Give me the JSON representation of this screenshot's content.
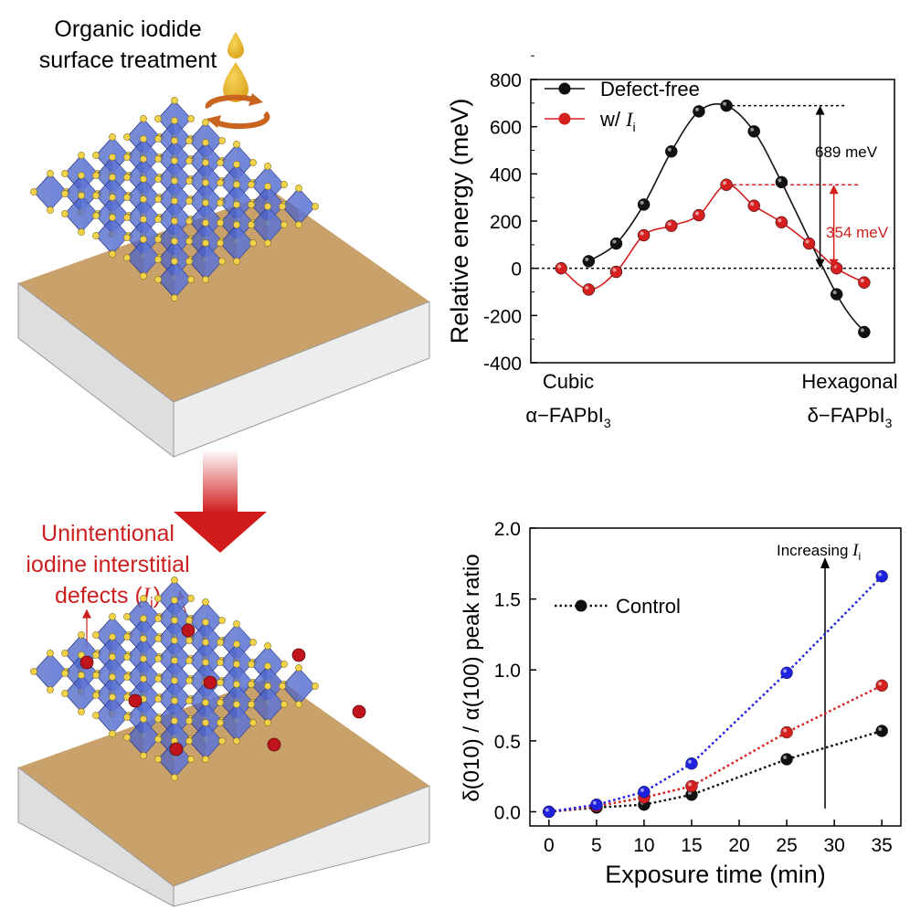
{
  "colors": {
    "black_series": "#111111",
    "red_series": "#d62020",
    "blue_series": "#2020e0",
    "annotation_red": "#cc1f1f",
    "substrate_top": "#c9a16b",
    "substrate_side": "#dcdcdc",
    "octahedron": "#4a63c8",
    "iodide_atom": "#f2d24a",
    "defect_atom": "#c0141c"
  },
  "illustration": {
    "top_caption_line1": "Organic iodide",
    "top_caption_line2": "surface treatment",
    "defect_caption_line1": "Unintentional",
    "defect_caption_line2": "iodine interstitial",
    "defect_caption_line3_prefix": "defects (",
    "defect_caption_line3_symbol": "I",
    "defect_caption_line3_sub": "i",
    "defect_caption_line3_suffix": ")"
  },
  "chart_data": [
    {
      "type": "line",
      "ylabel": "Relative energy (meV)",
      "ylim": [
        -400,
        800
      ],
      "yticks": [
        -400,
        -200,
        0,
        200,
        400,
        600,
        800
      ],
      "x_labels": {
        "left_line1": "Cubic",
        "left_line2_prefix": "α−FAPbI",
        "left_line2_sub": "3",
        "right_line1": "Hexagonal",
        "right_line2_prefix": "δ−FAPbI",
        "right_line2_sub": "3"
      },
      "legend": {
        "position": "top-left"
      },
      "series": [
        {
          "name": "Defect-free",
          "color": "#111111",
          "points": [
            [
              0.5,
              30
            ],
            [
              1.5,
              105
            ],
            [
              2.5,
              270
            ],
            [
              3.5,
              495
            ],
            [
              4.5,
              665
            ],
            [
              5.5,
              689
            ],
            [
              6.5,
              580
            ],
            [
              7.5,
              365
            ],
            [
              9.5,
              -110
            ],
            [
              10.5,
              -270
            ]
          ]
        },
        {
          "name_prefix": "w/ ",
          "name_symbol": "I",
          "name_sub": "i",
          "color": "#d62020",
          "points": [
            [
              -0.5,
              0
            ],
            [
              0.5,
              -90
            ],
            [
              1.5,
              -15
            ],
            [
              2.5,
              140
            ],
            [
              3.5,
              180
            ],
            [
              4.5,
              225
            ],
            [
              5.5,
              354
            ],
            [
              6.5,
              265
            ],
            [
              7.5,
              195
            ],
            [
              8.5,
              105
            ],
            [
              9.5,
              0
            ],
            [
              10.5,
              -60
            ]
          ]
        }
      ],
      "annotations": {
        "barrier_defect_free": "689 meV",
        "barrier_with_Ii": "354 meV"
      }
    },
    {
      "type": "line",
      "xlabel": "Exposure time (min)",
      "ylabel": "δ(010) / α(100) peak ratio",
      "xlim": [
        -2,
        37
      ],
      "ylim": [
        -0.1,
        2.0
      ],
      "xticks": [
        0,
        5,
        10,
        15,
        20,
        25,
        30,
        35
      ],
      "yticks": [
        0.0,
        0.5,
        1.0,
        1.5,
        2.0
      ],
      "legend": {
        "position": "top-left",
        "entries": [
          "Control"
        ]
      },
      "series": [
        {
          "name": "Control",
          "color": "#111111",
          "x": [
            0,
            5,
            10,
            15,
            25,
            35
          ],
          "y": [
            0.0,
            0.03,
            0.05,
            0.12,
            0.37,
            0.57
          ]
        },
        {
          "color": "#d62020",
          "x": [
            0,
            5,
            10,
            15,
            25,
            35
          ],
          "y": [
            0.0,
            0.04,
            0.1,
            0.18,
            0.56,
            0.89
          ]
        },
        {
          "color": "#2020e0",
          "x": [
            0,
            5,
            10,
            15,
            25,
            35
          ],
          "y": [
            0.0,
            0.05,
            0.14,
            0.34,
            0.98,
            1.66
          ]
        }
      ],
      "arrow_annotation": {
        "text": "Increasing ",
        "symbol": "I",
        "sub": "i"
      }
    }
  ]
}
